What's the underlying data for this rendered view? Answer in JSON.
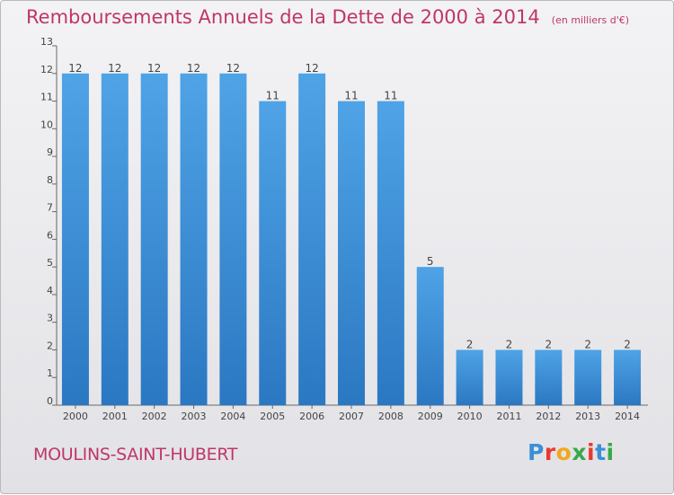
{
  "header": {
    "title": "Remboursements Annuels de la Dette de 2000 à 2014",
    "unit": "(en milliers d'€)"
  },
  "footer": {
    "commune": "MOULINS-SAINT-HUBERT",
    "logo_letters": [
      "P",
      "r",
      "o",
      "x",
      "i",
      "t",
      "i"
    ],
    "logo_colors": [
      "#3a8fd6",
      "#e63b2e",
      "#f2a81d",
      "#3aa84a",
      "#e63b2e",
      "#3a8fd6",
      "#3aa84a"
    ]
  },
  "colors": {
    "bar": "#4fa3e6",
    "bar_dark": "#2b78c2",
    "title": "#c0356a"
  },
  "chart_data": {
    "type": "bar",
    "title": "Remboursements Annuels de la Dette de 2000 à 2014",
    "xlabel": "",
    "ylabel": "",
    "categories": [
      "2000",
      "2001",
      "2002",
      "2003",
      "2004",
      "2005",
      "2006",
      "2007",
      "2008",
      "2009",
      "2010",
      "2011",
      "2012",
      "2013",
      "2014"
    ],
    "values": [
      12,
      12,
      12,
      12,
      12,
      11,
      12,
      11,
      11,
      5,
      2,
      2,
      2,
      2,
      2
    ],
    "ylim": [
      0,
      13
    ],
    "yticks": [
      0,
      1,
      2,
      3,
      4,
      5,
      6,
      7,
      8,
      9,
      10,
      11,
      12,
      13
    ],
    "grid": false,
    "legend": "none"
  }
}
